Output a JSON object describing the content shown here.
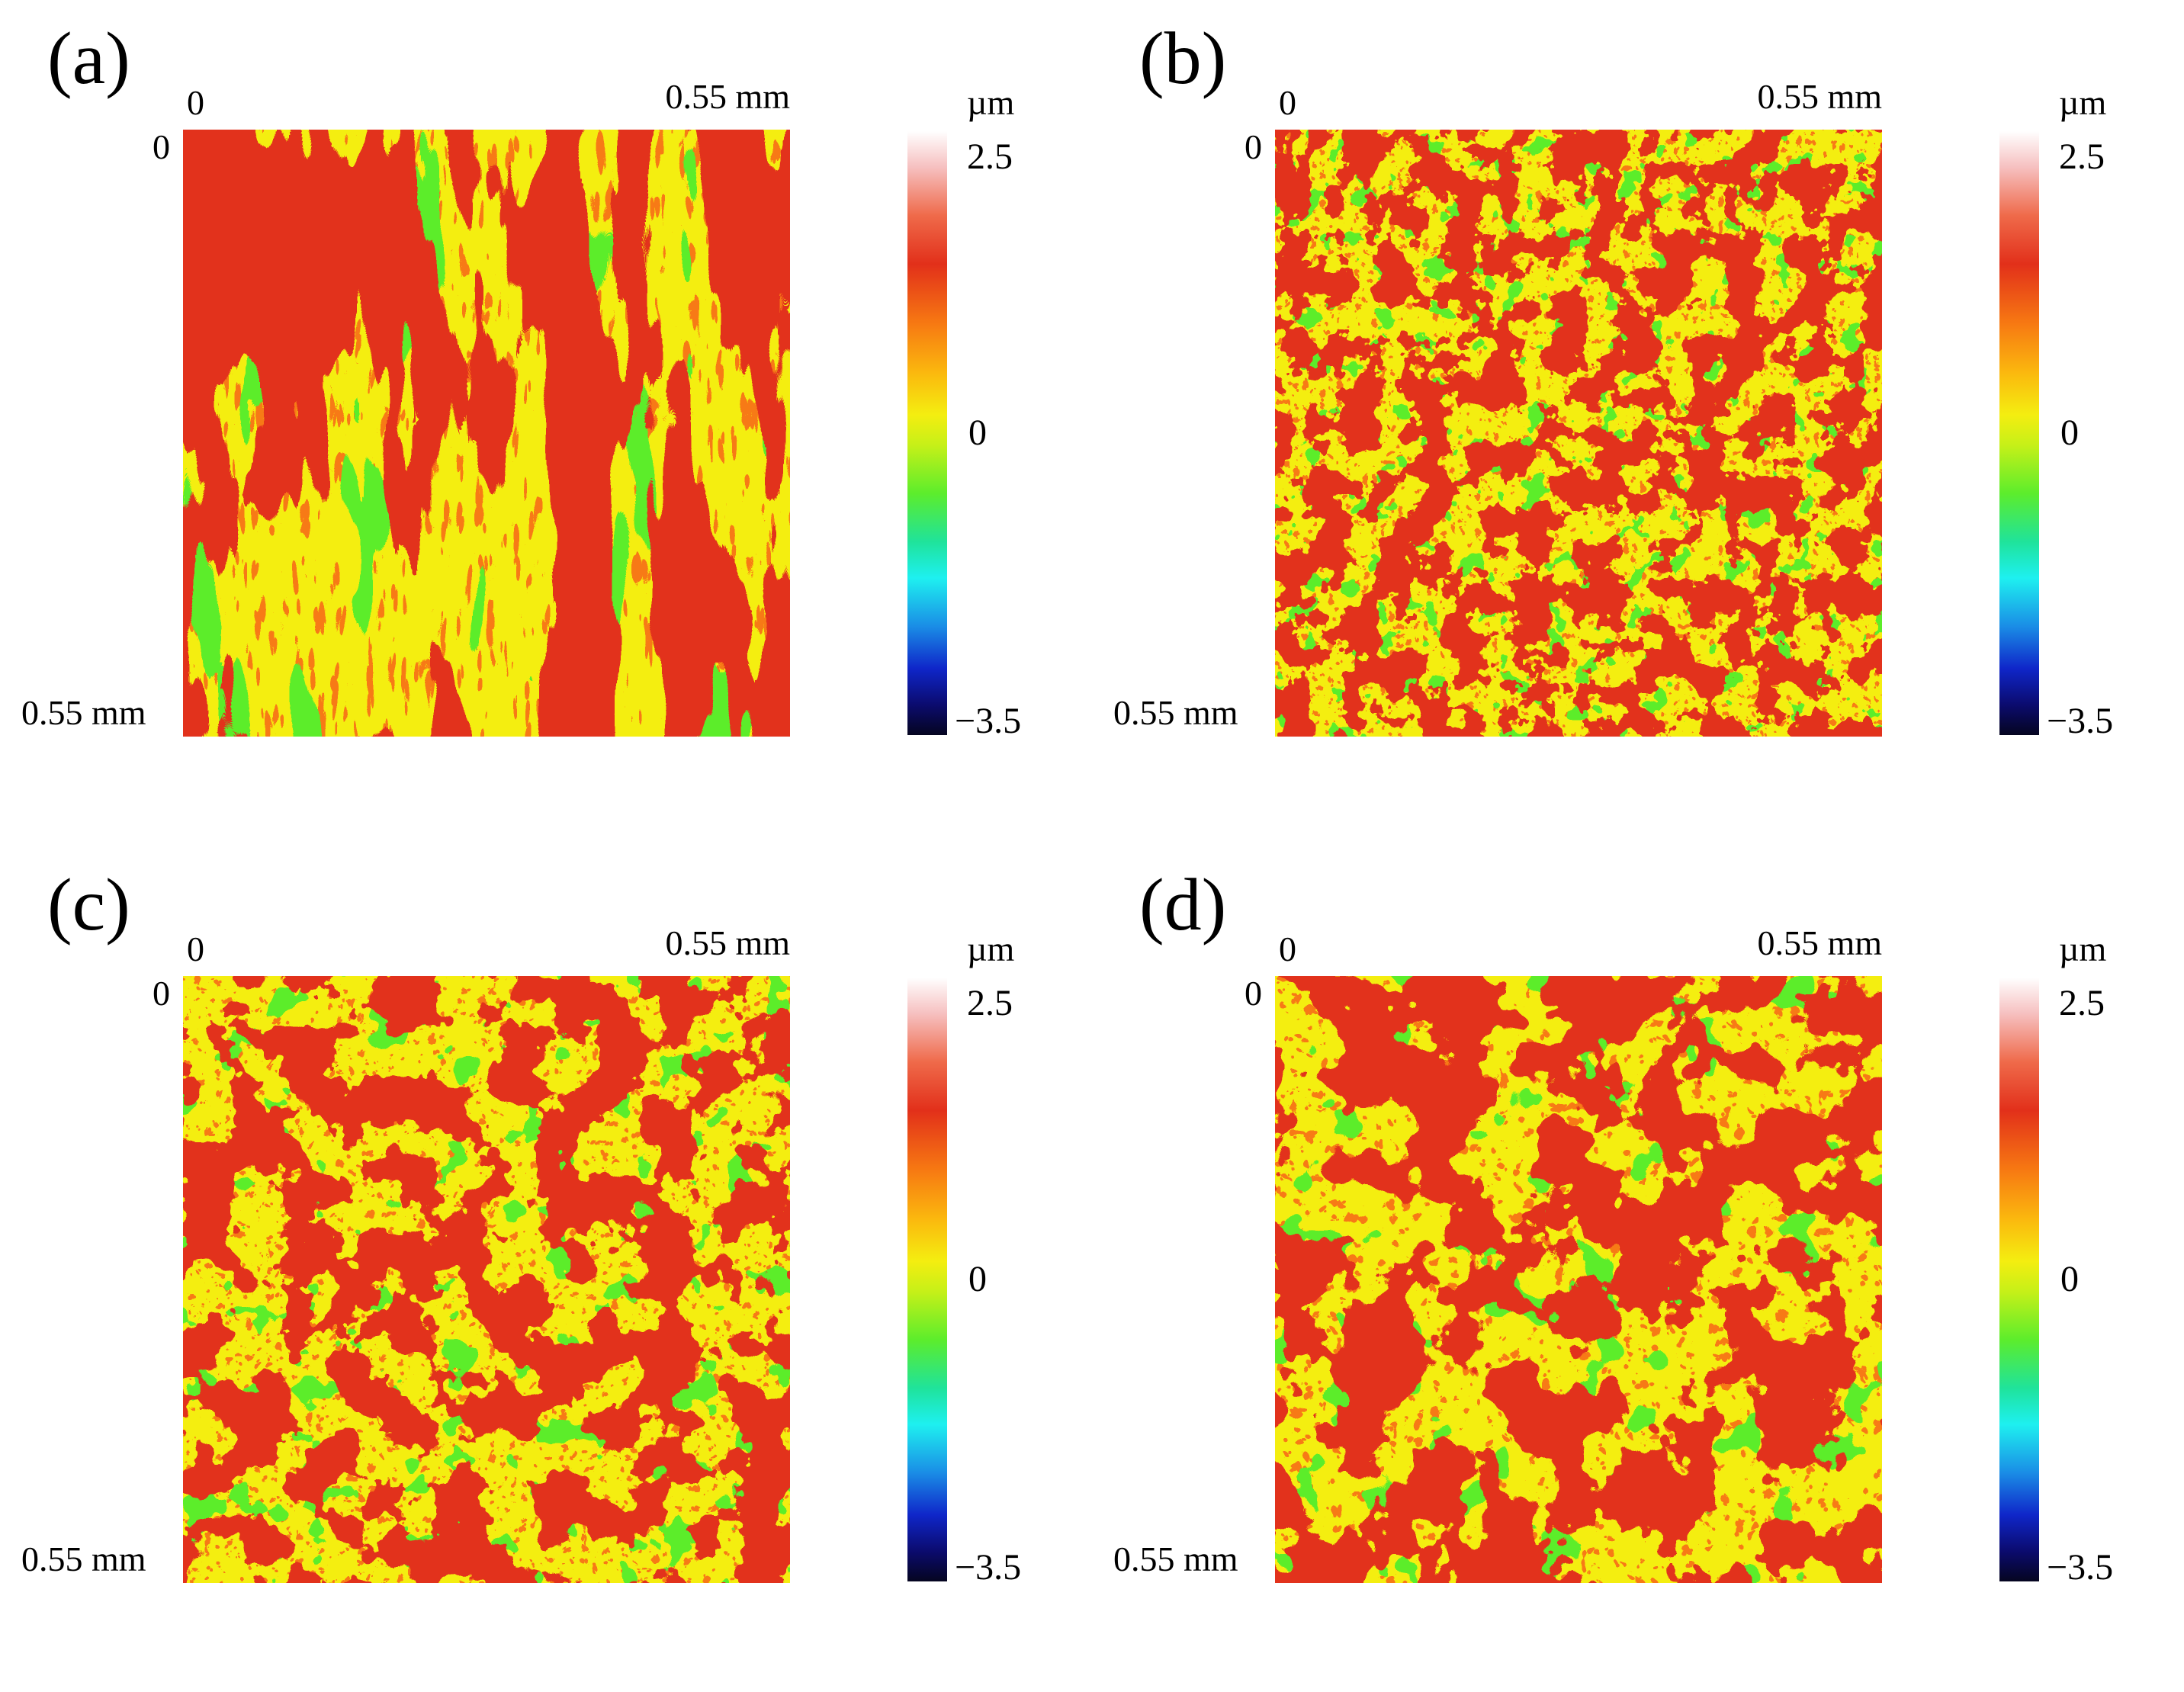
{
  "figure": {
    "panels": [
      {
        "label": "(a)",
        "x_start": "0",
        "x_end": "0.55 mm",
        "y_start": "0",
        "y_end": "0.55 mm",
        "colorbar": {
          "unit": "µm",
          "max": "2.5",
          "mid": "0",
          "min": "−3.5"
        },
        "texture": "streaky"
      },
      {
        "label": "(b)",
        "x_start": "0",
        "x_end": "0.55 mm",
        "y_start": "0",
        "y_end": "0.55 mm",
        "colorbar": {
          "unit": "µm",
          "max": "2.5",
          "mid": "0",
          "min": "−3.5"
        },
        "texture": "dotted"
      },
      {
        "label": "(c)",
        "x_start": "0",
        "x_end": "0.55 mm",
        "y_start": "0",
        "y_end": "0.55 mm",
        "colorbar": {
          "unit": "µm",
          "max": "2.5",
          "mid": "0",
          "min": "−3.5"
        },
        "texture": "blotchy"
      },
      {
        "label": "(d)",
        "x_start": "0",
        "x_end": "0.55 mm",
        "y_start": "0",
        "y_end": "0.55 mm",
        "colorbar": {
          "unit": "µm",
          "max": "2.5",
          "mid": "0",
          "min": "−3.5"
        },
        "texture": "blotchy-coarse"
      }
    ],
    "colors": {
      "high": "#ffffff",
      "peak": "#e2301a",
      "orange": "#f77a12",
      "yellow": "#f4ee10",
      "green": "#5ced2c",
      "cyan": "#1ef0f0",
      "blue": "#0f26c9",
      "low": "#050520"
    }
  }
}
